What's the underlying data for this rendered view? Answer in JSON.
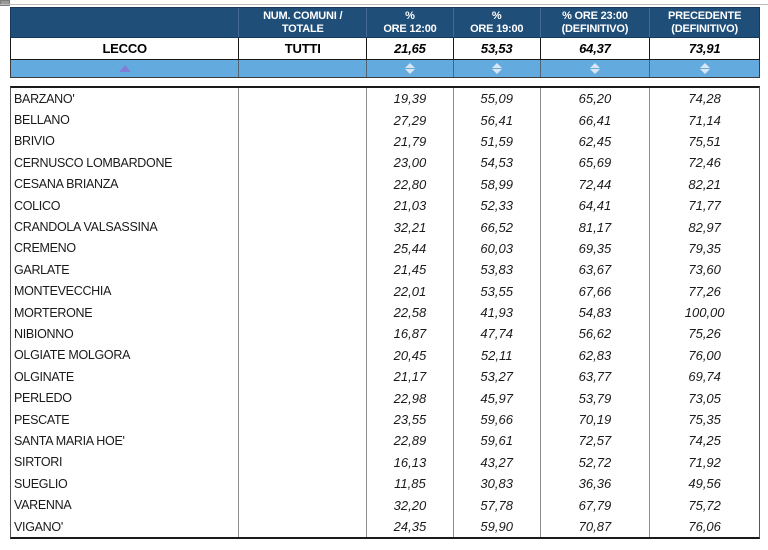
{
  "table": {
    "columns": [
      {
        "line1": "",
        "line2": ""
      },
      {
        "line1": "NUM. COMUNI /",
        "line2": "TOTALE"
      },
      {
        "line1": "%",
        "line2": "ORE 12:00"
      },
      {
        "line1": "%",
        "line2": "ORE 19:00"
      },
      {
        "line1": "% ORE 23:00",
        "line2": "(DEFINITIVO)"
      },
      {
        "line1": "PRECEDENTE",
        "line2": "(DEFINITIVO)"
      }
    ],
    "summary": {
      "name": "LECCO",
      "comuni": "TUTTI",
      "values": [
        "21,65",
        "53,53",
        "64,37",
        "73,91"
      ]
    },
    "sort_icons": {
      "name_column": "sort-ascending-triangle",
      "value_columns": "sort-toggle-diamond"
    },
    "rows": [
      {
        "name": "BARZANO'",
        "comuni": "",
        "values": [
          "19,39",
          "55,09",
          "65,20",
          "74,28"
        ]
      },
      {
        "name": "BELLANO",
        "comuni": "",
        "values": [
          "27,29",
          "56,41",
          "66,41",
          "71,14"
        ]
      },
      {
        "name": "BRIVIO",
        "comuni": "",
        "values": [
          "21,79",
          "51,59",
          "62,45",
          "75,51"
        ]
      },
      {
        "name": "CERNUSCO LOMBARDONE",
        "comuni": "",
        "values": [
          "23,00",
          "54,53",
          "65,69",
          "72,46"
        ]
      },
      {
        "name": "CESANA BRIANZA",
        "comuni": "",
        "values": [
          "22,80",
          "58,99",
          "72,44",
          "82,21"
        ]
      },
      {
        "name": "COLICO",
        "comuni": "",
        "values": [
          "21,03",
          "52,33",
          "64,41",
          "71,77"
        ]
      },
      {
        "name": "CRANDOLA VALSASSINA",
        "comuni": "",
        "values": [
          "32,21",
          "66,52",
          "81,17",
          "82,97"
        ]
      },
      {
        "name": "CREMENO",
        "comuni": "",
        "values": [
          "25,44",
          "60,03",
          "69,35",
          "79,35"
        ]
      },
      {
        "name": "GARLATE",
        "comuni": "",
        "values": [
          "21,45",
          "53,83",
          "63,67",
          "73,60"
        ]
      },
      {
        "name": "MONTEVECCHIA",
        "comuni": "",
        "values": [
          "22,01",
          "53,55",
          "67,66",
          "77,26"
        ]
      },
      {
        "name": "MORTERONE",
        "comuni": "",
        "values": [
          "22,58",
          "41,93",
          "54,83",
          "100,00"
        ]
      },
      {
        "name": "NIBIONNO",
        "comuni": "",
        "values": [
          "16,87",
          "47,74",
          "56,62",
          "75,26"
        ]
      },
      {
        "name": "OLGIATE MOLGORA",
        "comuni": "",
        "values": [
          "20,45",
          "52,11",
          "62,83",
          "76,00"
        ]
      },
      {
        "name": "OLGINATE",
        "comuni": "",
        "values": [
          "21,17",
          "53,27",
          "63,77",
          "69,74"
        ]
      },
      {
        "name": "PERLEDO",
        "comuni": "",
        "values": [
          "22,98",
          "45,97",
          "53,79",
          "73,05"
        ]
      },
      {
        "name": "PESCATE",
        "comuni": "",
        "values": [
          "23,55",
          "59,66",
          "70,19",
          "75,35"
        ]
      },
      {
        "name": "SANTA MARIA HOE'",
        "comuni": "",
        "values": [
          "22,89",
          "59,61",
          "72,57",
          "74,25"
        ]
      },
      {
        "name": "SIRTORI",
        "comuni": "",
        "values": [
          "16,13",
          "43,27",
          "52,72",
          "71,92"
        ]
      },
      {
        "name": "SUEGLIO",
        "comuni": "",
        "values": [
          "11,85",
          "30,83",
          "36,36",
          "49,56"
        ]
      },
      {
        "name": "VARENNA",
        "comuni": "",
        "values": [
          "32,20",
          "57,78",
          "67,79",
          "75,72"
        ]
      },
      {
        "name": "VIGANO'",
        "comuni": "",
        "values": [
          "24,35",
          "59,90",
          "70,87",
          "76,06"
        ]
      }
    ]
  },
  "colors": {
    "header_bg": "#1F4E79",
    "header_text": "#FFFFFF",
    "sort_row_bg": "#63ABDF",
    "sort_triangle": "#7F7FD7",
    "sort_diamond": "#D9E6F2",
    "grid_dark": "#1A1A1A",
    "grid_gray": "#8C8C8C"
  }
}
